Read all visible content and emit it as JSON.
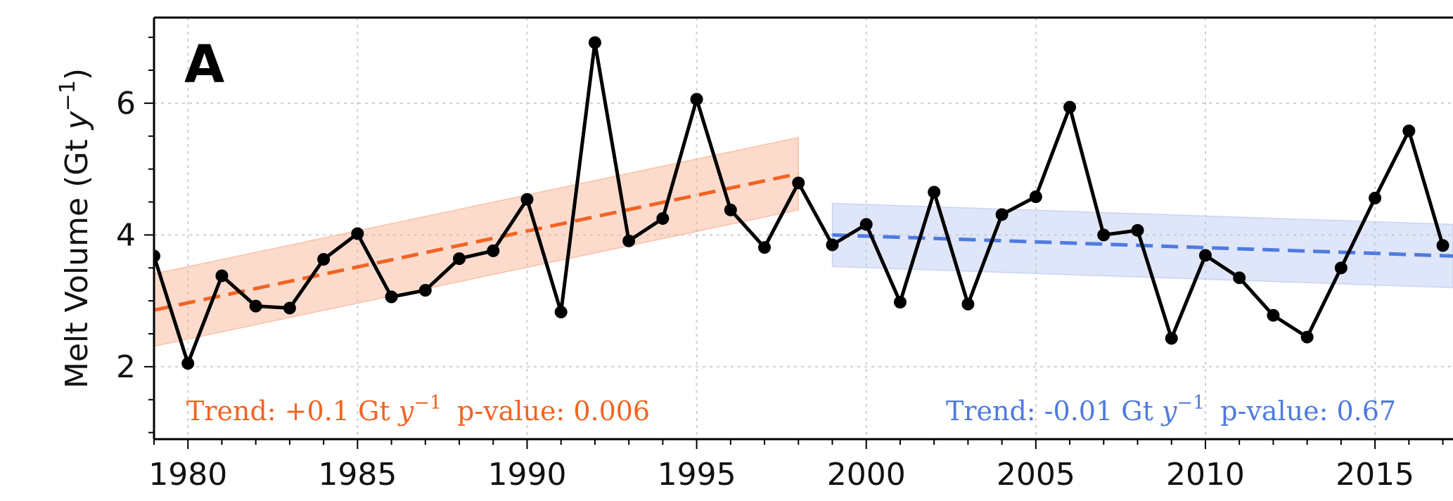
{
  "chart_data": {
    "type": "line",
    "panel_label": "A",
    "ylabel_text": "Melt Volume (Gt ",
    "ylabel_var": "y",
    "ylabel_exp": "−1",
    "ylabel_close": ")",
    "xlim": [
      1979,
      2017.3
    ],
    "ylim": [
      0.9,
      7.3
    ],
    "xticks": [
      1980,
      1985,
      1990,
      1995,
      2000,
      2005,
      2010,
      2015
    ],
    "yticks": [
      2,
      4,
      6
    ],
    "grid": true,
    "series": [
      {
        "color": "#000000",
        "x": [
          1979,
          1980,
          1981,
          1982,
          1983,
          1984,
          1985,
          1986,
          1987,
          1988,
          1989,
          1990,
          1991,
          1992,
          1993,
          1994,
          1995,
          1996,
          1997,
          1998,
          1999,
          2000,
          2001,
          2002,
          2003,
          2004,
          2005,
          2006,
          2007,
          2008,
          2009,
          2010,
          2011,
          2012,
          2013,
          2014,
          2015,
          2016,
          2017
        ],
        "y": [
          3.68,
          2.05,
          3.38,
          2.92,
          2.89,
          3.63,
          4.02,
          3.06,
          3.16,
          3.64,
          3.76,
          4.54,
          2.83,
          6.92,
          3.91,
          4.25,
          6.06,
          4.38,
          3.81,
          4.79,
          3.85,
          4.16,
          2.98,
          4.65,
          2.95,
          4.31,
          4.58,
          5.94,
          4.0,
          4.07,
          2.43,
          3.69,
          3.35,
          2.78,
          2.45,
          3.5,
          4.56,
          5.58,
          3.84
        ]
      }
    ],
    "trends": [
      {
        "color": "#f26322",
        "band_color": "#f9b08e",
        "x_range": [
          1979,
          1998
        ],
        "y_start": 2.86,
        "y_end": 4.93,
        "band_half_width": 0.55,
        "annotation_prefix": "Trend: +0.1 Gt ",
        "annotation_var": "y",
        "annotation_exp": "−1",
        "annotation_p": "p-value: 0.006"
      },
      {
        "color": "#4f7ae0",
        "band_color": "#b9c7f1",
        "x_range": [
          1999,
          2017.3
        ],
        "y_start": 4.0,
        "y_end": 3.68,
        "band_half_width": 0.48,
        "annotation_prefix": "Trend: -0.01 Gt ",
        "annotation_var": "y",
        "annotation_exp": "−1",
        "annotation_p": "p-value: 0.67"
      }
    ]
  }
}
